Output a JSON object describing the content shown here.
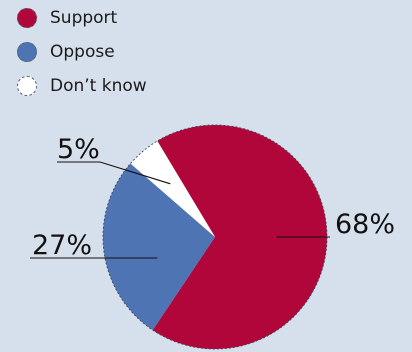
{
  "chart_data": {
    "type": "pie",
    "legend_placement": "top-left",
    "series": [
      {
        "name": "Support",
        "value": 68,
        "label": "68%",
        "color": "#b0063a"
      },
      {
        "name": "Oppose",
        "value": 27,
        "label": "27%",
        "color": "#4f74b3"
      },
      {
        "name": "Don’t know",
        "value": 5,
        "label": "5%",
        "color": "#ffffff"
      }
    ]
  }
}
